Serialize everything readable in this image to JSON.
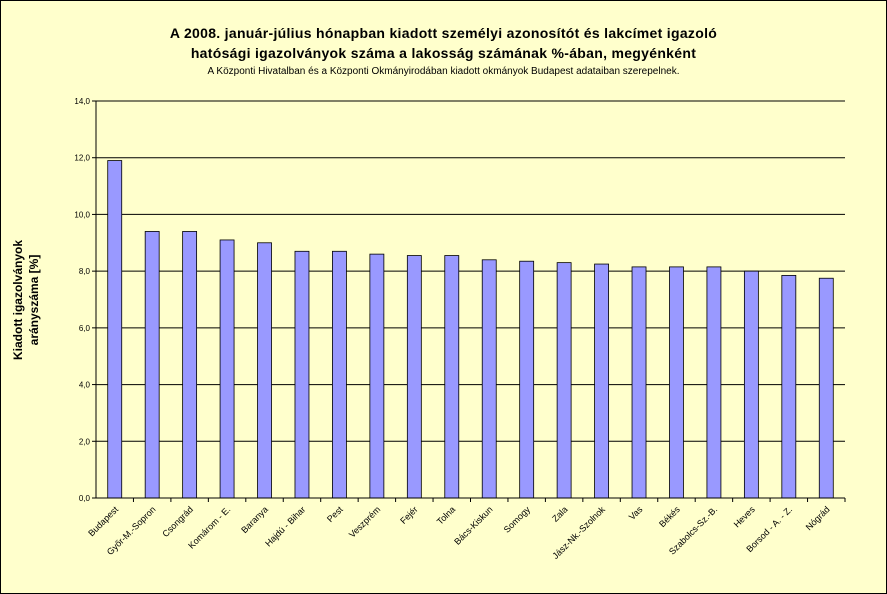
{
  "chart_data": {
    "type": "bar",
    "title_line1": "A 2008. január-július hónapban kiadott személyi azonosítót és lakcímet igazoló",
    "title_line2": "hatósági igazolványok száma a lakosság  számának %-ában, megyénként",
    "subtitle": "A Központi Hivatalban és a Központi Okmányirodában kiadott okmányok Budapest adataiban szerepelnek.",
    "ylabel_line1": "Kiadott igazolványok",
    "ylabel_line2": "arányszáma [%]",
    "xlabel": "",
    "ylim": [
      0,
      14
    ],
    "yticks": [
      "0,0",
      "2,0",
      "4,0",
      "6,0",
      "8,0",
      "10,0",
      "12,0",
      "14,0"
    ],
    "grid": true,
    "legend": "none",
    "categories": [
      "Budapest",
      "Győr-M.-Sopron",
      "Csongrád",
      "Komárom - E.",
      "Baranya",
      "Hajdú - Bihar",
      "Pest",
      "Veszprém",
      "Fejér",
      "Tolna",
      "Bács-Kiskun",
      "Somogy",
      "Zala",
      "Jász-Nk.-Szolnok",
      "Vas",
      "Békés",
      "Szabolcs-Sz.-B.",
      "Heves",
      "Borsod - A. - Z.",
      "Nógrád"
    ],
    "values": [
      11.9,
      9.4,
      9.4,
      9.1,
      9.0,
      8.7,
      8.7,
      8.6,
      8.55,
      8.55,
      8.4,
      8.35,
      8.3,
      8.25,
      8.15,
      8.15,
      8.15,
      8.0,
      7.85,
      7.75
    ],
    "colors": {
      "bar": "#9999ff",
      "plot_bg": "#ffffcc",
      "grid": "#000000"
    }
  }
}
